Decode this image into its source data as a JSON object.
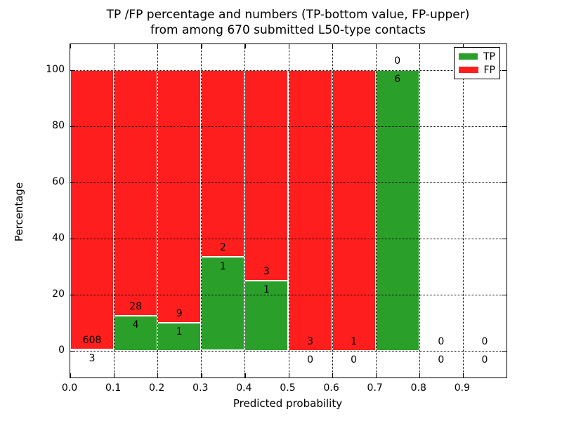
{
  "title": {
    "line1": "TP /FP percentage and numbers (TP-bottom value, FP-upper)",
    "line2": "from among 670 submitted L50-type contacts"
  },
  "chart_data": {
    "type": "bar",
    "variant": "stacked-percentage-histogram",
    "title": "TP /FP percentage and numbers (TP-bottom value, FP-upper) from among 670 submitted L50-type contacts",
    "xlabel": "Predicted probability",
    "ylabel": "Percentage",
    "total_contacts": 670,
    "xlim": [
      0.0,
      1.0
    ],
    "ylim": [
      -10,
      110
    ],
    "grid": "dotted-black-on-top",
    "bar_edge_color": "#ffffff",
    "colors": {
      "tp": "#2aa02a",
      "fp": "#ff1e1e"
    },
    "x_ticks": [
      "0.0",
      "0.1",
      "0.2",
      "0.3",
      "0.4",
      "0.5",
      "0.6",
      "0.7",
      "0.8",
      "0.9"
    ],
    "y_ticks": [
      0,
      20,
      40,
      60,
      80,
      100
    ],
    "legend": {
      "position": "upper right",
      "entries": [
        {
          "label": "TP",
          "color": "#2aa02a"
        },
        {
          "label": "FP",
          "color": "#ff1e1e"
        }
      ]
    },
    "bins": [
      {
        "x_start": 0.0,
        "x_end": 0.1,
        "tp": 3,
        "fp": 608,
        "tp_pct": 0.49,
        "has_bar": true
      },
      {
        "x_start": 0.1,
        "x_end": 0.2,
        "tp": 4,
        "fp": 28,
        "tp_pct": 12.5,
        "has_bar": true
      },
      {
        "x_start": 0.2,
        "x_end": 0.3,
        "tp": 1,
        "fp": 9,
        "tp_pct": 10.0,
        "has_bar": true
      },
      {
        "x_start": 0.3,
        "x_end": 0.4,
        "tp": 1,
        "fp": 2,
        "tp_pct": 33.33,
        "has_bar": true
      },
      {
        "x_start": 0.4,
        "x_end": 0.5,
        "tp": 1,
        "fp": 3,
        "tp_pct": 25.0,
        "has_bar": true
      },
      {
        "x_start": 0.5,
        "x_end": 0.6,
        "tp": 0,
        "fp": 3,
        "tp_pct": 0.0,
        "has_bar": true
      },
      {
        "x_start": 0.6,
        "x_end": 0.7,
        "tp": 0,
        "fp": 1,
        "tp_pct": 0.0,
        "has_bar": true
      },
      {
        "x_start": 0.7,
        "x_end": 0.8,
        "tp": 6,
        "fp": 0,
        "tp_pct": 100.0,
        "has_bar": true
      },
      {
        "x_start": 0.8,
        "x_end": 0.9,
        "tp": 0,
        "fp": 0,
        "tp_pct": 0.0,
        "has_bar": false
      },
      {
        "x_start": 0.9,
        "x_end": 1.0,
        "tp": 0,
        "fp": 0,
        "tp_pct": 0.0,
        "has_bar": false
      }
    ]
  }
}
